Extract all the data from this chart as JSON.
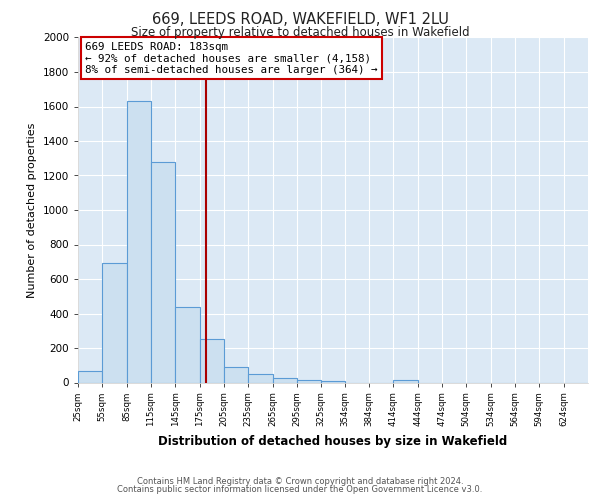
{
  "title": "669, LEEDS ROAD, WAKEFIELD, WF1 2LU",
  "subtitle": "Size of property relative to detached houses in Wakefield",
  "xlabel": "Distribution of detached houses by size in Wakefield",
  "ylabel": "Number of detached properties",
  "bar_color": "#cce0f0",
  "bar_edge_color": "#5b9bd5",
  "bg_color": "#dce9f5",
  "grid_color": "#ffffff",
  "fig_bg_color": "#ffffff",
  "bin_edges": [
    25,
    55,
    85,
    115,
    145,
    175,
    205,
    235,
    265,
    295,
    325,
    354,
    384,
    414,
    444,
    474,
    504,
    534,
    564,
    594,
    624,
    654
  ],
  "counts": [
    65,
    690,
    1630,
    1280,
    435,
    250,
    90,
    50,
    25,
    15,
    10,
    0,
    0,
    15,
    0,
    0,
    0,
    0,
    0,
    0,
    0
  ],
  "property_size": 183,
  "red_line_color": "#aa0000",
  "annotation_text_line1": "669 LEEDS ROAD: 183sqm",
  "annotation_text_line2": "← 92% of detached houses are smaller (4,158)",
  "annotation_text_line3": "8% of semi-detached houses are larger (364) →",
  "annotation_box_color": "#ffffff",
  "annotation_box_edge": "#cc0000",
  "ylim": [
    0,
    2000
  ],
  "yticks": [
    0,
    200,
    400,
    600,
    800,
    1000,
    1200,
    1400,
    1600,
    1800,
    2000
  ],
  "xtick_labels": [
    "25sqm",
    "55sqm",
    "85sqm",
    "115sqm",
    "145sqm",
    "175sqm",
    "205sqm",
    "235sqm",
    "265sqm",
    "295sqm",
    "325sqm",
    "354sqm",
    "384sqm",
    "414sqm",
    "444sqm",
    "474sqm",
    "504sqm",
    "534sqm",
    "564sqm",
    "594sqm",
    "624sqm"
  ],
  "footer_line1": "Contains HM Land Registry data © Crown copyright and database right 2024.",
  "footer_line2": "Contains public sector information licensed under the Open Government Licence v3.0."
}
